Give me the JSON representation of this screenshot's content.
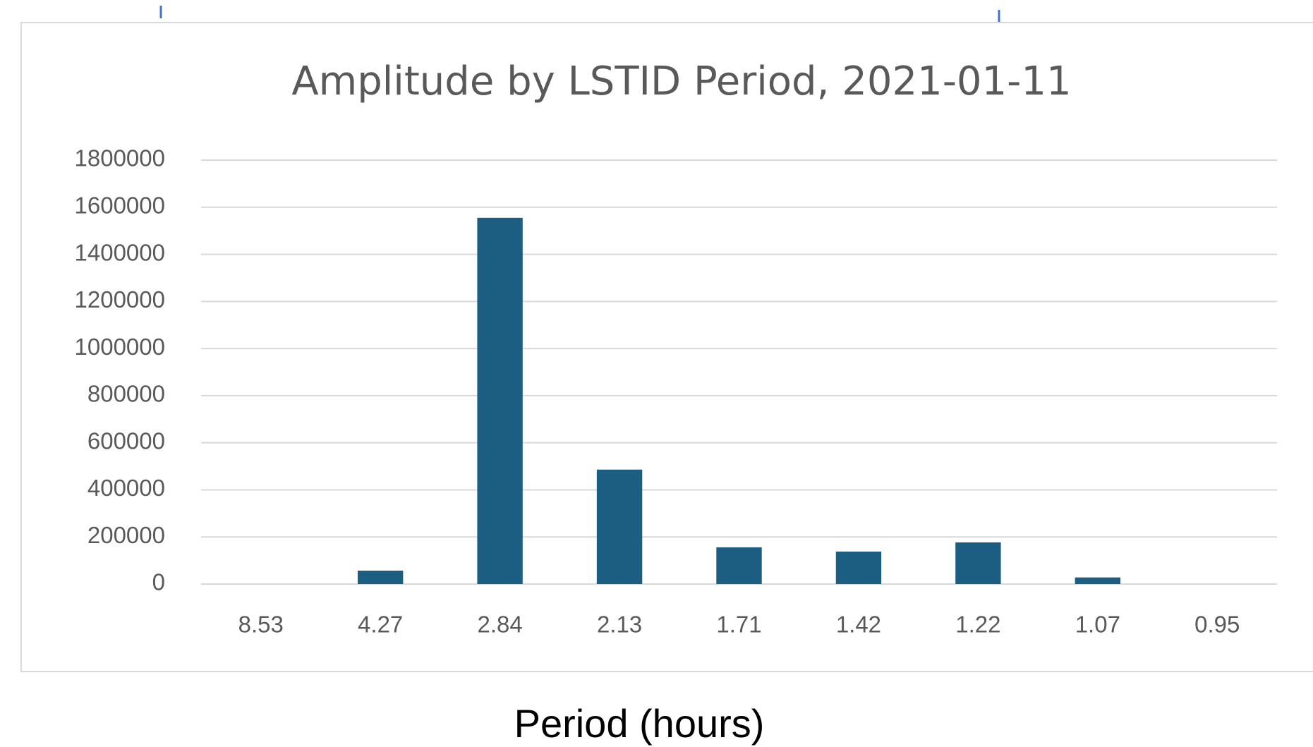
{
  "chart_data": {
    "type": "bar",
    "title": "Amplitude by LSTID Period, 2021-01-11",
    "xlabel": "Period (hours)",
    "categories": [
      "8.53",
      "4.27",
      "2.84",
      "2.13",
      "1.71",
      "1.42",
      "1.22",
      "1.07",
      "0.95"
    ],
    "values": [
      0,
      57000,
      1555000,
      486000,
      156000,
      138000,
      177000,
      28000,
      0
    ],
    "color": "#1b5e82",
    "ylim": [
      0,
      1800000
    ],
    "yticks": [
      0,
      200000,
      400000,
      600000,
      800000,
      1000000,
      1200000,
      1400000,
      1600000,
      1800000
    ],
    "grid": true
  }
}
